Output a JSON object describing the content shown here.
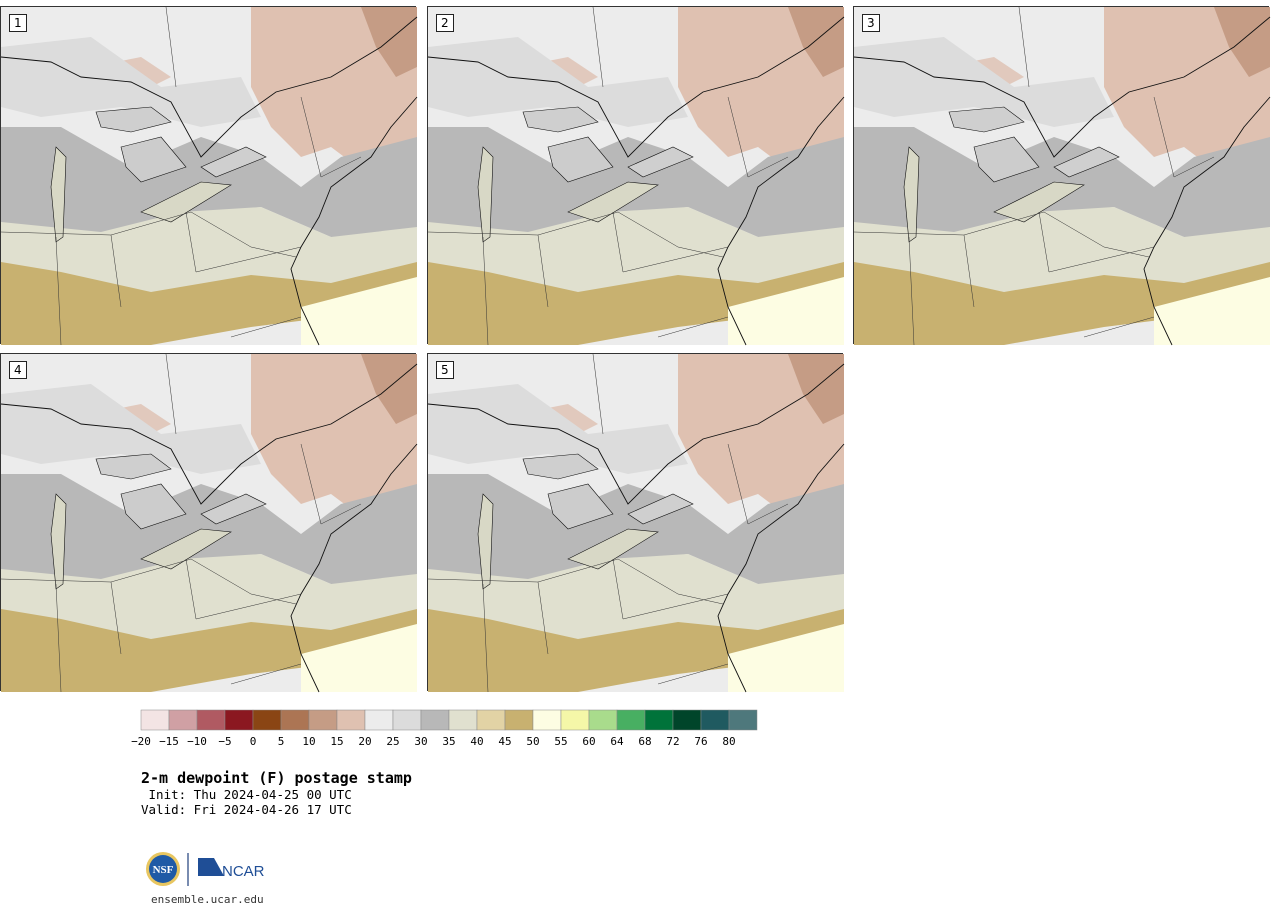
{
  "panels": [
    {
      "label": "1"
    },
    {
      "label": "2"
    },
    {
      "label": "3"
    },
    {
      "label": "4"
    },
    {
      "label": "5"
    }
  ],
  "colorbar": {
    "tick_labels": [
      "−20",
      "−15",
      "−10",
      "−5",
      "0",
      "5",
      "10",
      "15",
      "20",
      "25",
      "30",
      "35",
      "40",
      "45",
      "50",
      "55",
      "60",
      "64",
      "68",
      "72",
      "76",
      "80"
    ],
    "colors": [
      "#f3e4e4",
      "#d0a0a4",
      "#b05a62",
      "#8b1820",
      "#8a4514",
      "#ac7554",
      "#c59c85",
      "#dfc1b1",
      "#ececec",
      "#dcdcdc",
      "#b8b8b8",
      "#e0e0cf",
      "#e2d3a5",
      "#c8b170",
      "#fdfde3",
      "#f5f7a8",
      "#a9dc8c",
      "#48af62",
      "#00733a",
      "#00452a",
      "#1f5a60",
      "#4e787c"
    ]
  },
  "title": "2-m dewpoint (F) postage stamp",
  "init_line": " Init: Thu 2024-04-25 00 UTC",
  "valid_line": "Valid: Fri 2024-04-26 17 UTC",
  "logos": {
    "nsf_text": "NSF",
    "ncar_text": "NCAR"
  },
  "site": "ensemble.ucar.edu"
}
